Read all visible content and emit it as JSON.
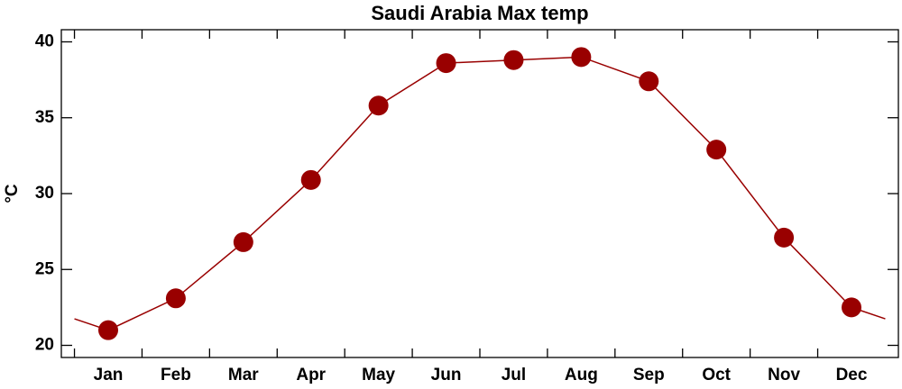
{
  "chart_data": {
    "type": "line",
    "title": "Saudi Arabia Max temp",
    "y_label": "°C",
    "categories": [
      "Jan",
      "Feb",
      "Mar",
      "Apr",
      "May",
      "Jun",
      "Jul",
      "Aug",
      "Sep",
      "Oct",
      "Nov",
      "Dec"
    ],
    "series": [
      {
        "name": "Max temp",
        "color": "#990000",
        "values": [
          21.0,
          23.1,
          26.8,
          30.9,
          35.8,
          38.6,
          38.8,
          39.0,
          37.4,
          32.9,
          27.1,
          22.5
        ]
      }
    ],
    "ylim": [
      19.2,
      40.8
    ],
    "yticks": [
      20,
      25,
      30,
      35,
      40
    ]
  }
}
